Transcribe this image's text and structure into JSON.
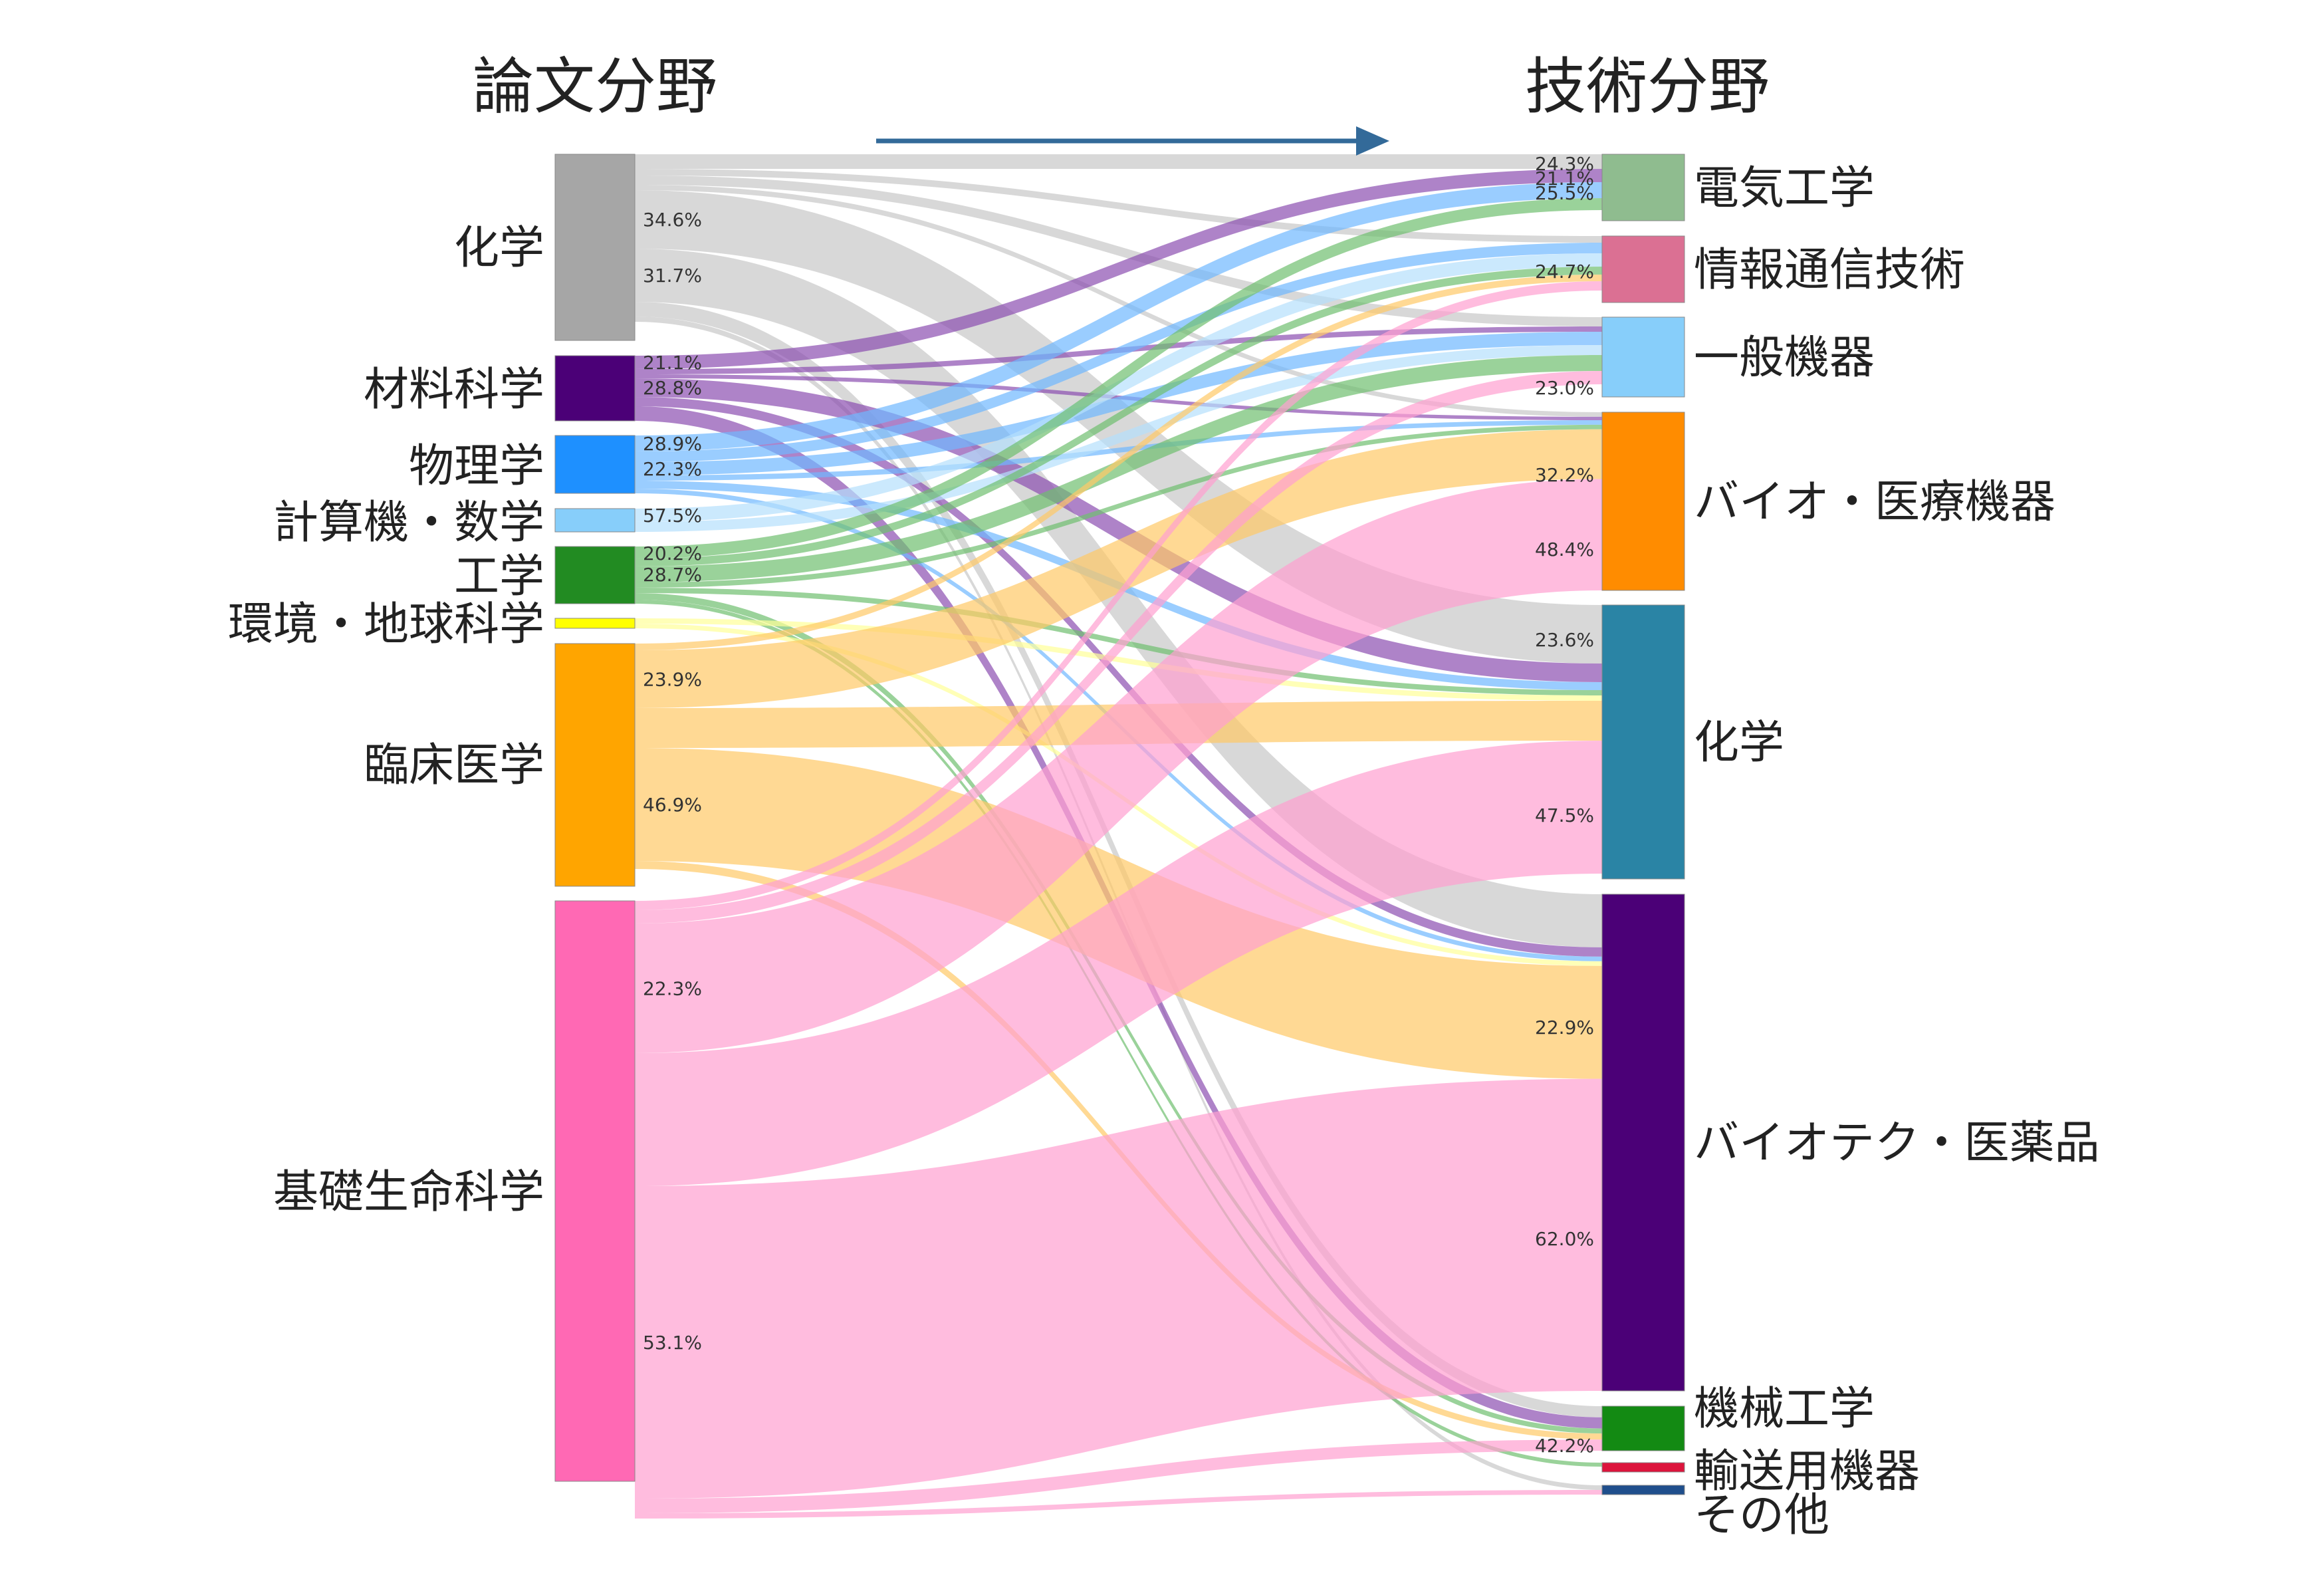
{
  "header": {
    "left_title": "論文分野",
    "right_title": "技術分野",
    "arrow_color": "#336a99"
  },
  "source_nodes": [
    {
      "id": "chem",
      "label": "化学",
      "color": "#a6a6a6",
      "flow_color": "#c8c8c8"
    },
    {
      "id": "mat",
      "label": "材料科学",
      "color": "#4b0077",
      "flow_color": "#8c4fb0"
    },
    {
      "id": "phys",
      "label": "物理学",
      "color": "#1e90ff",
      "flow_color": "#6fb8ff"
    },
    {
      "id": "comp",
      "label": "計算機・数学",
      "color": "#87cefa",
      "flow_color": "#b5e0fc"
    },
    {
      "id": "eng",
      "label": "工学",
      "color": "#228b22",
      "flow_color": "#6fbf6f"
    },
    {
      "id": "env",
      "label": "環境・地球科学",
      "color": "#ffff00",
      "flow_color": "#ffff99"
    },
    {
      "id": "clin",
      "label": "臨床医学",
      "color": "#ffa500",
      "flow_color": "#ffc966"
    },
    {
      "id": "bio",
      "label": "基礎生命科学",
      "color": "#ff69b4",
      "flow_color": "#ff9fd0"
    }
  ],
  "target_nodes": [
    {
      "id": "elec",
      "label": "電気工学",
      "color": "#8fbc8f"
    },
    {
      "id": "ict",
      "label": "情報通信技術",
      "color": "#db7093"
    },
    {
      "id": "gen",
      "label": "一般機器",
      "color": "#87cefa"
    },
    {
      "id": "biomed",
      "label": "バイオ・医療機器",
      "color": "#ff8c00"
    },
    {
      "id": "chemt",
      "label": "化学",
      "color": "#2a84a5"
    },
    {
      "id": "biotech",
      "label": "バイオテク・医薬品",
      "color": "#4b0077"
    },
    {
      "id": "mech",
      "label": "機械工学",
      "color": "#138a13"
    },
    {
      "id": "trans",
      "label": "輸送用機器",
      "color": "#dc143c"
    },
    {
      "id": "other",
      "label": "その他",
      "color": "#1f4e8c"
    }
  ],
  "flows": [
    {
      "source": "chem",
      "target": "elec"
    },
    {
      "source": "chem",
      "target": "ict"
    },
    {
      "source": "chem",
      "target": "gen"
    },
    {
      "source": "chem",
      "target": "biomed"
    },
    {
      "source": "chem",
      "target": "chemt",
      "pct": "34.6%"
    },
    {
      "source": "chem",
      "target": "biotech",
      "pct": "31.7%"
    },
    {
      "source": "chem",
      "target": "mech"
    },
    {
      "source": "chem",
      "target": "other"
    },
    {
      "source": "mat",
      "target": "elec",
      "pct": "21.1%"
    },
    {
      "source": "mat",
      "target": "gen"
    },
    {
      "source": "mat",
      "target": "biomed"
    },
    {
      "source": "mat",
      "target": "chemt",
      "pct": "28.8%"
    },
    {
      "source": "mat",
      "target": "biotech"
    },
    {
      "source": "mat",
      "target": "mech"
    },
    {
      "source": "phys",
      "target": "elec",
      "pct": "28.9%"
    },
    {
      "source": "phys",
      "target": "ict"
    },
    {
      "source": "phys",
      "target": "gen",
      "pct": "22.3%"
    },
    {
      "source": "phys",
      "target": "biomed"
    },
    {
      "source": "phys",
      "target": "chemt"
    },
    {
      "source": "phys",
      "target": "biotech"
    },
    {
      "source": "comp",
      "target": "ict",
      "pct": "57.5%"
    },
    {
      "source": "comp",
      "target": "gen"
    },
    {
      "source": "eng",
      "target": "elec",
      "pct": "20.2%"
    },
    {
      "source": "eng",
      "target": "ict"
    },
    {
      "source": "eng",
      "target": "gen",
      "pct": "28.7%"
    },
    {
      "source": "eng",
      "target": "biomed"
    },
    {
      "source": "eng",
      "target": "chemt"
    },
    {
      "source": "eng",
      "target": "mech"
    },
    {
      "source": "eng",
      "target": "trans"
    },
    {
      "source": "env",
      "target": "chemt"
    },
    {
      "source": "env",
      "target": "biotech"
    },
    {
      "source": "clin",
      "target": "ict"
    },
    {
      "source": "clin",
      "target": "biomed",
      "pct": "23.9%"
    },
    {
      "source": "clin",
      "target": "chemt"
    },
    {
      "source": "clin",
      "target": "biotech",
      "pct": "46.9%"
    },
    {
      "source": "clin",
      "target": "mech"
    },
    {
      "source": "bio",
      "target": "ict"
    },
    {
      "source": "bio",
      "target": "gen"
    },
    {
      "source": "bio",
      "target": "biomed",
      "pct": "22.3%"
    },
    {
      "source": "bio",
      "target": "chemt"
    },
    {
      "source": "bio",
      "target": "biotech",
      "pct": "53.1%"
    },
    {
      "source": "bio",
      "target": "mech"
    },
    {
      "source": "bio",
      "target": "other"
    }
  ],
  "target_pct_labels": [
    {
      "target": "elec",
      "values": [
        "24.3%",
        "21.1%",
        "25.5%"
      ]
    },
    {
      "target": "ict",
      "values": [
        "24.7%"
      ]
    },
    {
      "target": "gen",
      "values": [
        "23.0%"
      ]
    },
    {
      "target": "biomed",
      "values": [
        "32.2%",
        "48.4%"
      ]
    },
    {
      "target": "chemt",
      "values": [
        "23.6%",
        "47.5%"
      ]
    },
    {
      "target": "biotech",
      "values": [
        "22.9%",
        "62.0%"
      ]
    },
    {
      "target": "mech",
      "values": [
        "42.2%"
      ]
    }
  ]
}
